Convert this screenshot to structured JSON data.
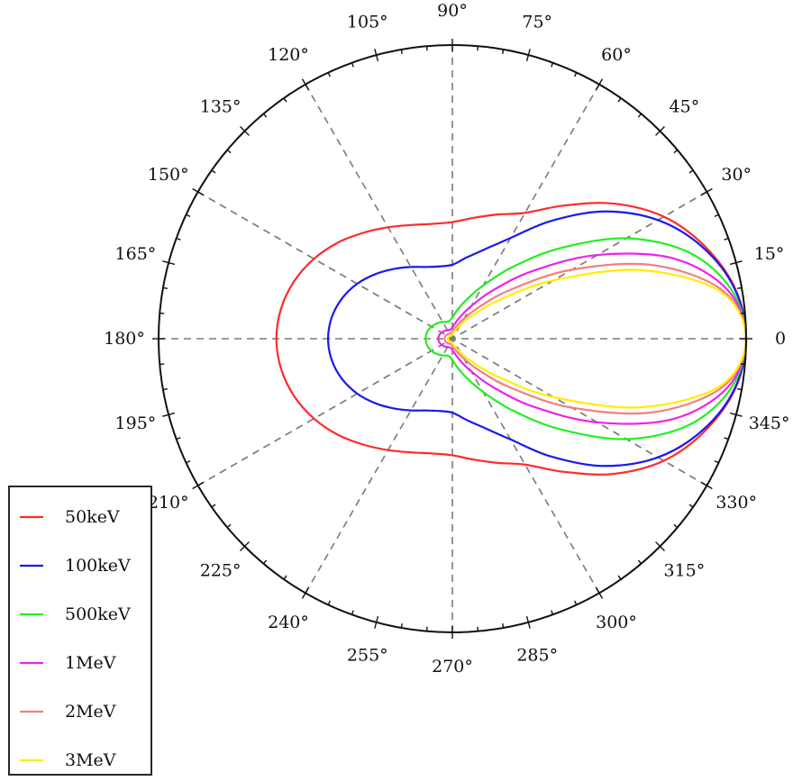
{
  "chart_data": {
    "type": "polar-line",
    "title": "",
    "angle_unit": "degrees",
    "angle_ticks": [
      {
        "angle": 0,
        "label": "0"
      },
      {
        "angle": 15,
        "label": "15°"
      },
      {
        "angle": 30,
        "label": "30°"
      },
      {
        "angle": 45,
        "label": "45°"
      },
      {
        "angle": 60,
        "label": "60°"
      },
      {
        "angle": 75,
        "label": "75°"
      },
      {
        "angle": 90,
        "label": "90°"
      },
      {
        "angle": 105,
        "label": "105°"
      },
      {
        "angle": 120,
        "label": "120°"
      },
      {
        "angle": 135,
        "label": "135°"
      },
      {
        "angle": 150,
        "label": "150°"
      },
      {
        "angle": 165,
        "label": "165°"
      },
      {
        "angle": 180,
        "label": "180°"
      },
      {
        "angle": 195,
        "label": "195°"
      },
      {
        "angle": 210,
        "label": "210°"
      },
      {
        "angle": 225,
        "label": "225°"
      },
      {
        "angle": 240,
        "label": "240°"
      },
      {
        "angle": 255,
        "label": "255°"
      },
      {
        "angle": 270,
        "label": "270°"
      },
      {
        "angle": 285,
        "label": "285°"
      },
      {
        "angle": 300,
        "label": "300°"
      },
      {
        "angle": 315,
        "label": "315°"
      },
      {
        "angle": 330,
        "label": "330°"
      },
      {
        "angle": 345,
        "label": "345°"
      }
    ],
    "radial_max": 1.0,
    "dashed_gridlines_every_deg": 30,
    "radial_labels_shown": false,
    "legend_position": "lower-left",
    "theta_sample_deg": [
      0,
      10,
      20,
      30,
      40,
      50,
      60,
      70,
      80,
      90,
      100,
      110,
      120,
      130,
      140,
      150,
      160,
      170,
      180
    ],
    "series": [
      {
        "name": "50keV",
        "color": "#ff2a2a",
        "r": [
          1.0,
          0.978,
          0.916,
          0.831,
          0.716,
          0.592,
          0.495,
          0.45,
          0.418,
          0.397,
          0.397,
          0.412,
          0.438,
          0.471,
          0.509,
          0.544,
          0.573,
          0.592,
          0.599
        ]
      },
      {
        "name": "100keV",
        "color": "#1a1aee",
        "r": [
          1.0,
          0.976,
          0.908,
          0.808,
          0.674,
          0.524,
          0.396,
          0.324,
          0.281,
          0.252,
          0.25,
          0.26,
          0.282,
          0.31,
          0.342,
          0.374,
          0.4,
          0.417,
          0.423
        ]
      },
      {
        "name": "500keV",
        "color": "#22ee22",
        "r": [
          1.0,
          0.964,
          0.858,
          0.684,
          0.48,
          0.319,
          0.209,
          0.142,
          0.1,
          0.072,
          0.061,
          0.061,
          0.066,
          0.071,
          0.077,
          0.082,
          0.087,
          0.09,
          0.091
        ]
      },
      {
        "name": "1MeV",
        "color": "#ee22ee",
        "r": [
          1.0,
          0.952,
          0.8,
          0.57,
          0.36,
          0.215,
          0.128,
          0.08,
          0.053,
          0.038,
          0.032,
          0.031,
          0.033,
          0.036,
          0.039,
          0.042,
          0.045,
          0.047,
          0.048
        ]
      },
      {
        "name": "2MeV",
        "color": "#f08080",
        "r": [
          1.0,
          0.936,
          0.731,
          0.47,
          0.26,
          0.14,
          0.078,
          0.048,
          0.032,
          0.024,
          0.02,
          0.019,
          0.02,
          0.021,
          0.022,
          0.024,
          0.025,
          0.026,
          0.026
        ]
      },
      {
        "name": "3MeV",
        "color": "#ffee00",
        "r": [
          1.0,
          0.926,
          0.683,
          0.398,
          0.2,
          0.1,
          0.054,
          0.032,
          0.021,
          0.015,
          0.012,
          0.011,
          0.011,
          0.012,
          0.013,
          0.013,
          0.014,
          0.015,
          0.015
        ]
      }
    ]
  }
}
